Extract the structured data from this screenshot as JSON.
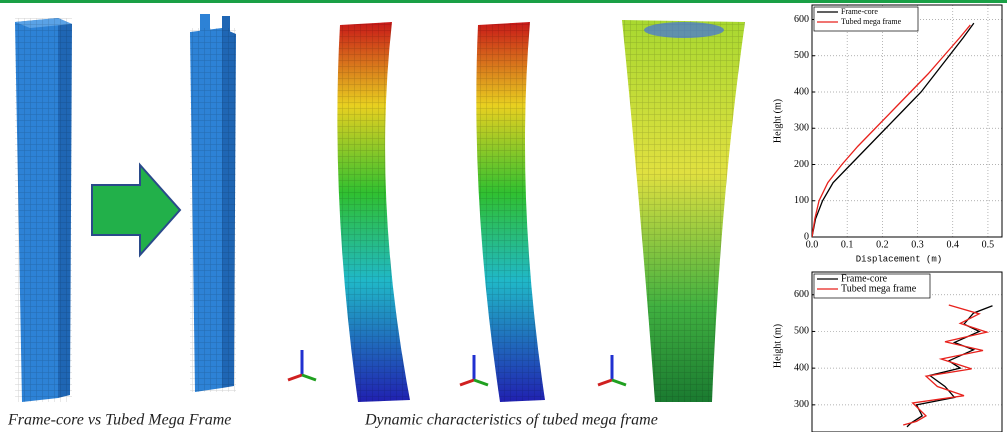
{
  "captions": [
    "Frame-core vs Tubed Mega Frame",
    "Dynamic characteristics of tubed mega frame"
  ],
  "chart_data": [
    {
      "type": "line",
      "y_label": "Height (m)",
      "x_label": "Displacement (m)",
      "xlim": [
        0,
        0.54
      ],
      "ylim": [
        0,
        640
      ],
      "xticks": [
        {
          "value": 0,
          "label": "0.0"
        },
        0.1,
        0.2,
        0.3,
        0.4,
        0.5
      ],
      "yticks": [
        0,
        100,
        200,
        300,
        400,
        500,
        600
      ],
      "grid": true,
      "series": [
        {
          "name": "Frame-core",
          "color": "#000000",
          "x": [
            0,
            0.01,
            0.03,
            0.06,
            0.11,
            0.16,
            0.21,
            0.26,
            0.31,
            0.35,
            0.39,
            0.43,
            0.46
          ],
          "values": [
            0,
            50,
            100,
            150,
            200,
            250,
            300,
            350,
            400,
            450,
            500,
            550,
            590
          ]
        },
        {
          "name": "Tubed mega frame",
          "color": "#e8211c",
          "x": [
            0,
            0.008,
            0.02,
            0.045,
            0.085,
            0.13,
            0.18,
            0.23,
            0.28,
            0.33,
            0.375,
            0.42,
            0.45
          ],
          "values": [
            0,
            50,
            100,
            150,
            200,
            250,
            300,
            350,
            400,
            450,
            500,
            550,
            585
          ]
        }
      ]
    },
    {
      "type": "line",
      "y_label": "Height (m)",
      "xlim": [
        0,
        1
      ],
      "ylim": [
        226,
        662
      ],
      "yticks": [
        300,
        400,
        500,
        600
      ],
      "grid": true,
      "series": [
        {
          "name": "Frame-core",
          "color": "#000000",
          "x": [
            0.5,
            0.52,
            0.58,
            0.55,
            0.75,
            0.7,
            0.62,
            0.78,
            0.72,
            0.85,
            0.75,
            0.88,
            0.8,
            0.85,
            0.95
          ],
          "values": [
            240,
            250,
            270,
            300,
            320,
            350,
            380,
            400,
            420,
            450,
            470,
            500,
            520,
            550,
            570
          ]
        },
        {
          "name": "Tubed mega frame",
          "color": "#e8211c",
          "x": [
            0.48,
            0.55,
            0.6,
            0.53,
            0.8,
            0.66,
            0.6,
            0.84,
            0.68,
            0.9,
            0.7,
            0.92,
            0.78,
            0.88,
            0.72
          ],
          "values": [
            245,
            255,
            270,
            305,
            325,
            350,
            378,
            398,
            425,
            448,
            472,
            498,
            522,
            548,
            572
          ]
        }
      ]
    }
  ]
}
